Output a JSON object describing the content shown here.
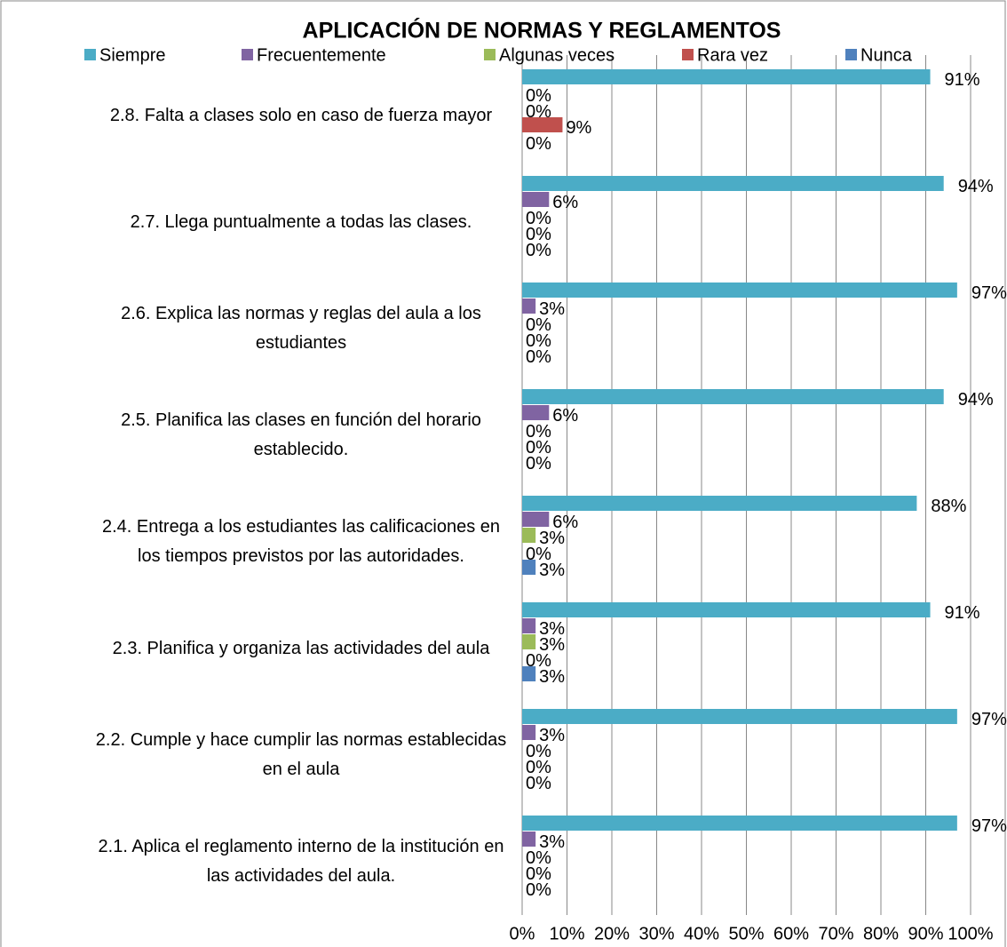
{
  "chart_data": {
    "type": "bar",
    "orientation": "horizontal",
    "title": "APLICACIÓN DE NORMAS Y REGLAMENTOS",
    "categories": [
      "2.8. Falta a clases solo en caso de fuerza mayor",
      "2.7. Llega puntualmente a todas las clases.",
      "2.6. Explica las normas y reglas del aula a los estudiantes",
      "2.5. Planifica las clases en función del horario establecido.",
      "2.4. Entrega a los estudiantes las calificaciones en los tiempos previstos por las autoridades.",
      "2.3. Planifica y organiza las actividades del aula",
      "2.2. Cumple y hace cumplir las normas establecidas en el aula",
      "2.1. Aplica el reglamento interno de la institución en las actividades del aula."
    ],
    "series": [
      {
        "name": "Siempre",
        "color": "#4bacc6",
        "values": [
          91,
          94,
          97,
          94,
          88,
          91,
          97,
          97
        ],
        "value_labels": [
          "91%",
          "94%",
          "97%",
          "94%",
          "88%",
          "91%",
          "97%",
          "97%"
        ]
      },
      {
        "name": "Frecuentemente",
        "color": "#8064a2",
        "values": [
          0,
          6,
          3,
          6,
          6,
          3,
          3,
          3
        ],
        "value_labels": [
          "0%",
          "6%",
          "3%",
          "6%",
          "6%",
          "3%",
          "3%",
          "3%"
        ]
      },
      {
        "name": "Algunas veces",
        "color": "#9bbb59",
        "values": [
          0,
          0,
          0,
          0,
          3,
          3,
          0,
          0
        ],
        "value_labels": [
          "0%",
          "0%",
          "0%",
          "0%",
          "3%",
          "3%",
          "0%",
          "0%"
        ]
      },
      {
        "name": "Rara vez",
        "color": "#c0504d",
        "values": [
          9,
          0,
          0,
          0,
          0,
          0,
          0,
          0
        ],
        "value_labels": [
          "9%",
          "0%",
          "0%",
          "0%",
          "0%",
          "0%",
          "0%",
          "0%"
        ]
      },
      {
        "name": "Nunca",
        "color": "#4f81bd",
        "values": [
          0,
          0,
          0,
          0,
          3,
          3,
          0,
          0
        ],
        "value_labels": [
          "0%",
          "0%",
          "0%",
          "0%",
          "3%",
          "3%",
          "0%",
          "0%"
        ]
      }
    ],
    "xlim": [
      0,
      100
    ],
    "xticks": [
      {
        "value": 0,
        "label": "0%"
      },
      {
        "value": 10,
        "label": "10%"
      },
      {
        "value": 20,
        "label": "20%"
      },
      {
        "value": 30,
        "label": "30%"
      },
      {
        "value": 40,
        "label": "40%"
      },
      {
        "value": 50,
        "label": "50%"
      },
      {
        "value": 60,
        "label": "60%"
      },
      {
        "value": 70,
        "label": "70%"
      },
      {
        "value": 80,
        "label": "80%"
      },
      {
        "value": 90,
        "label": "90%"
      },
      {
        "value": 100,
        "label": "100%"
      }
    ],
    "grid": true,
    "legend": "top"
  }
}
